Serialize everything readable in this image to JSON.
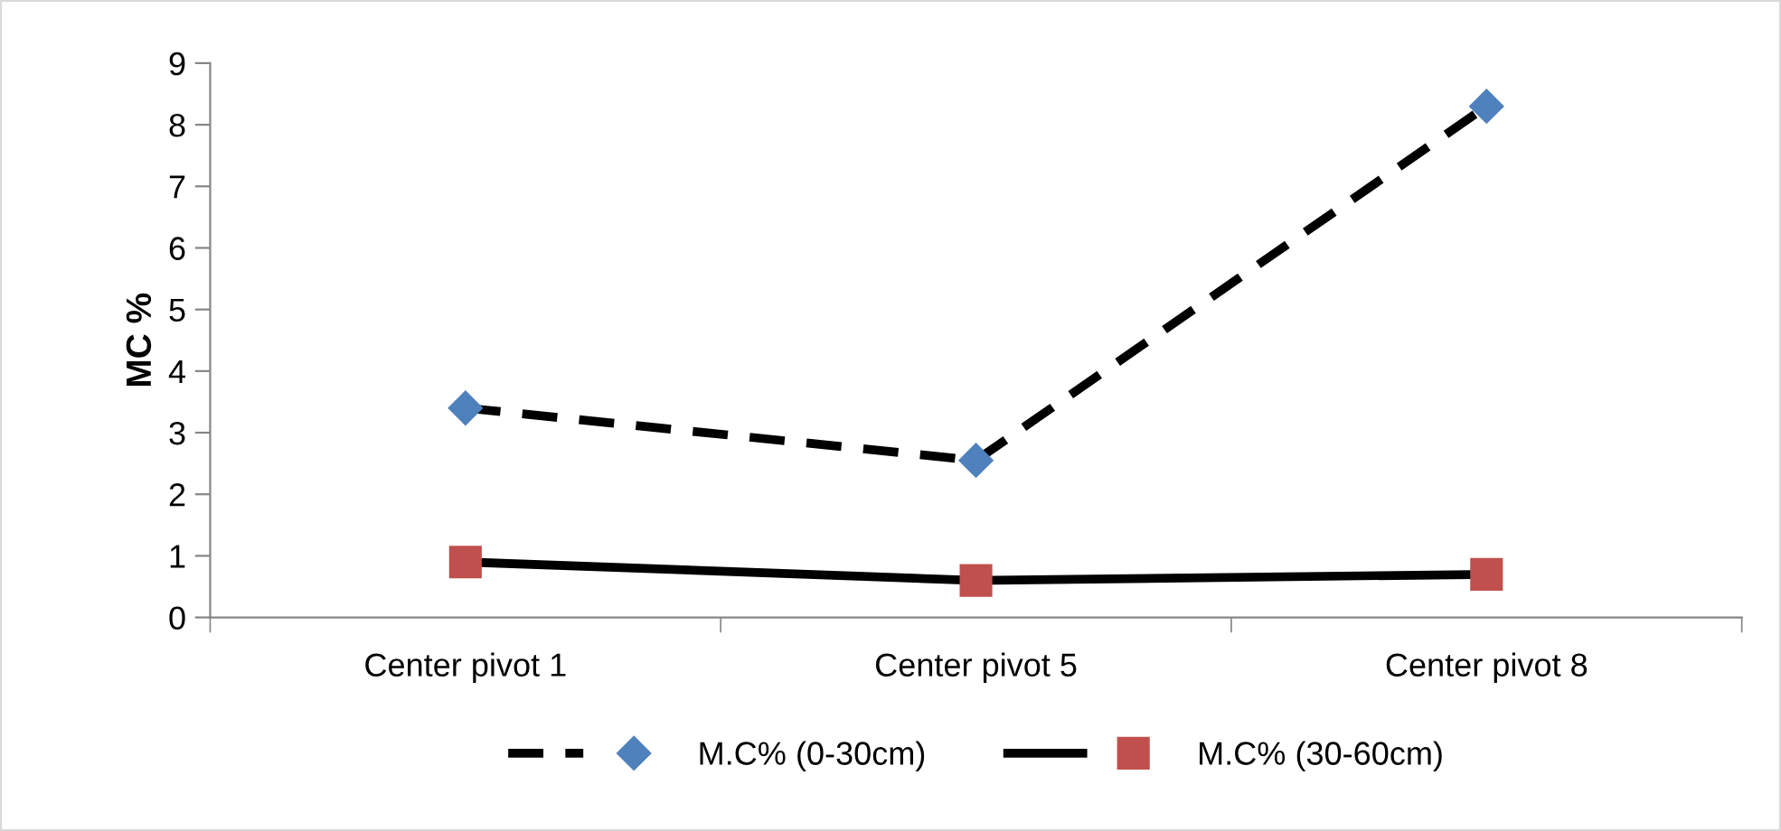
{
  "chart_data": {
    "type": "line",
    "ylabel": "MC %",
    "categories": [
      "Center pivot 1",
      "Center pivot 5",
      "Center pivot 8"
    ],
    "series": [
      {
        "name": "M.C% (0-30cm)",
        "color": "#4f81bd",
        "values": [
          3.4,
          2.55,
          8.3
        ],
        "marker": "diamond",
        "line_style": "dashed"
      },
      {
        "name": "M.C% (30-60cm)",
        "color": "#c0504d",
        "values": [
          0.9,
          0.6,
          0.7
        ],
        "marker": "square",
        "line_style": "solid"
      }
    ],
    "ylim": [
      0,
      9
    ],
    "yticks": [
      0,
      1,
      2,
      3,
      4,
      5,
      6,
      7,
      8,
      9
    ],
    "grid": false,
    "legend": "bottom"
  }
}
